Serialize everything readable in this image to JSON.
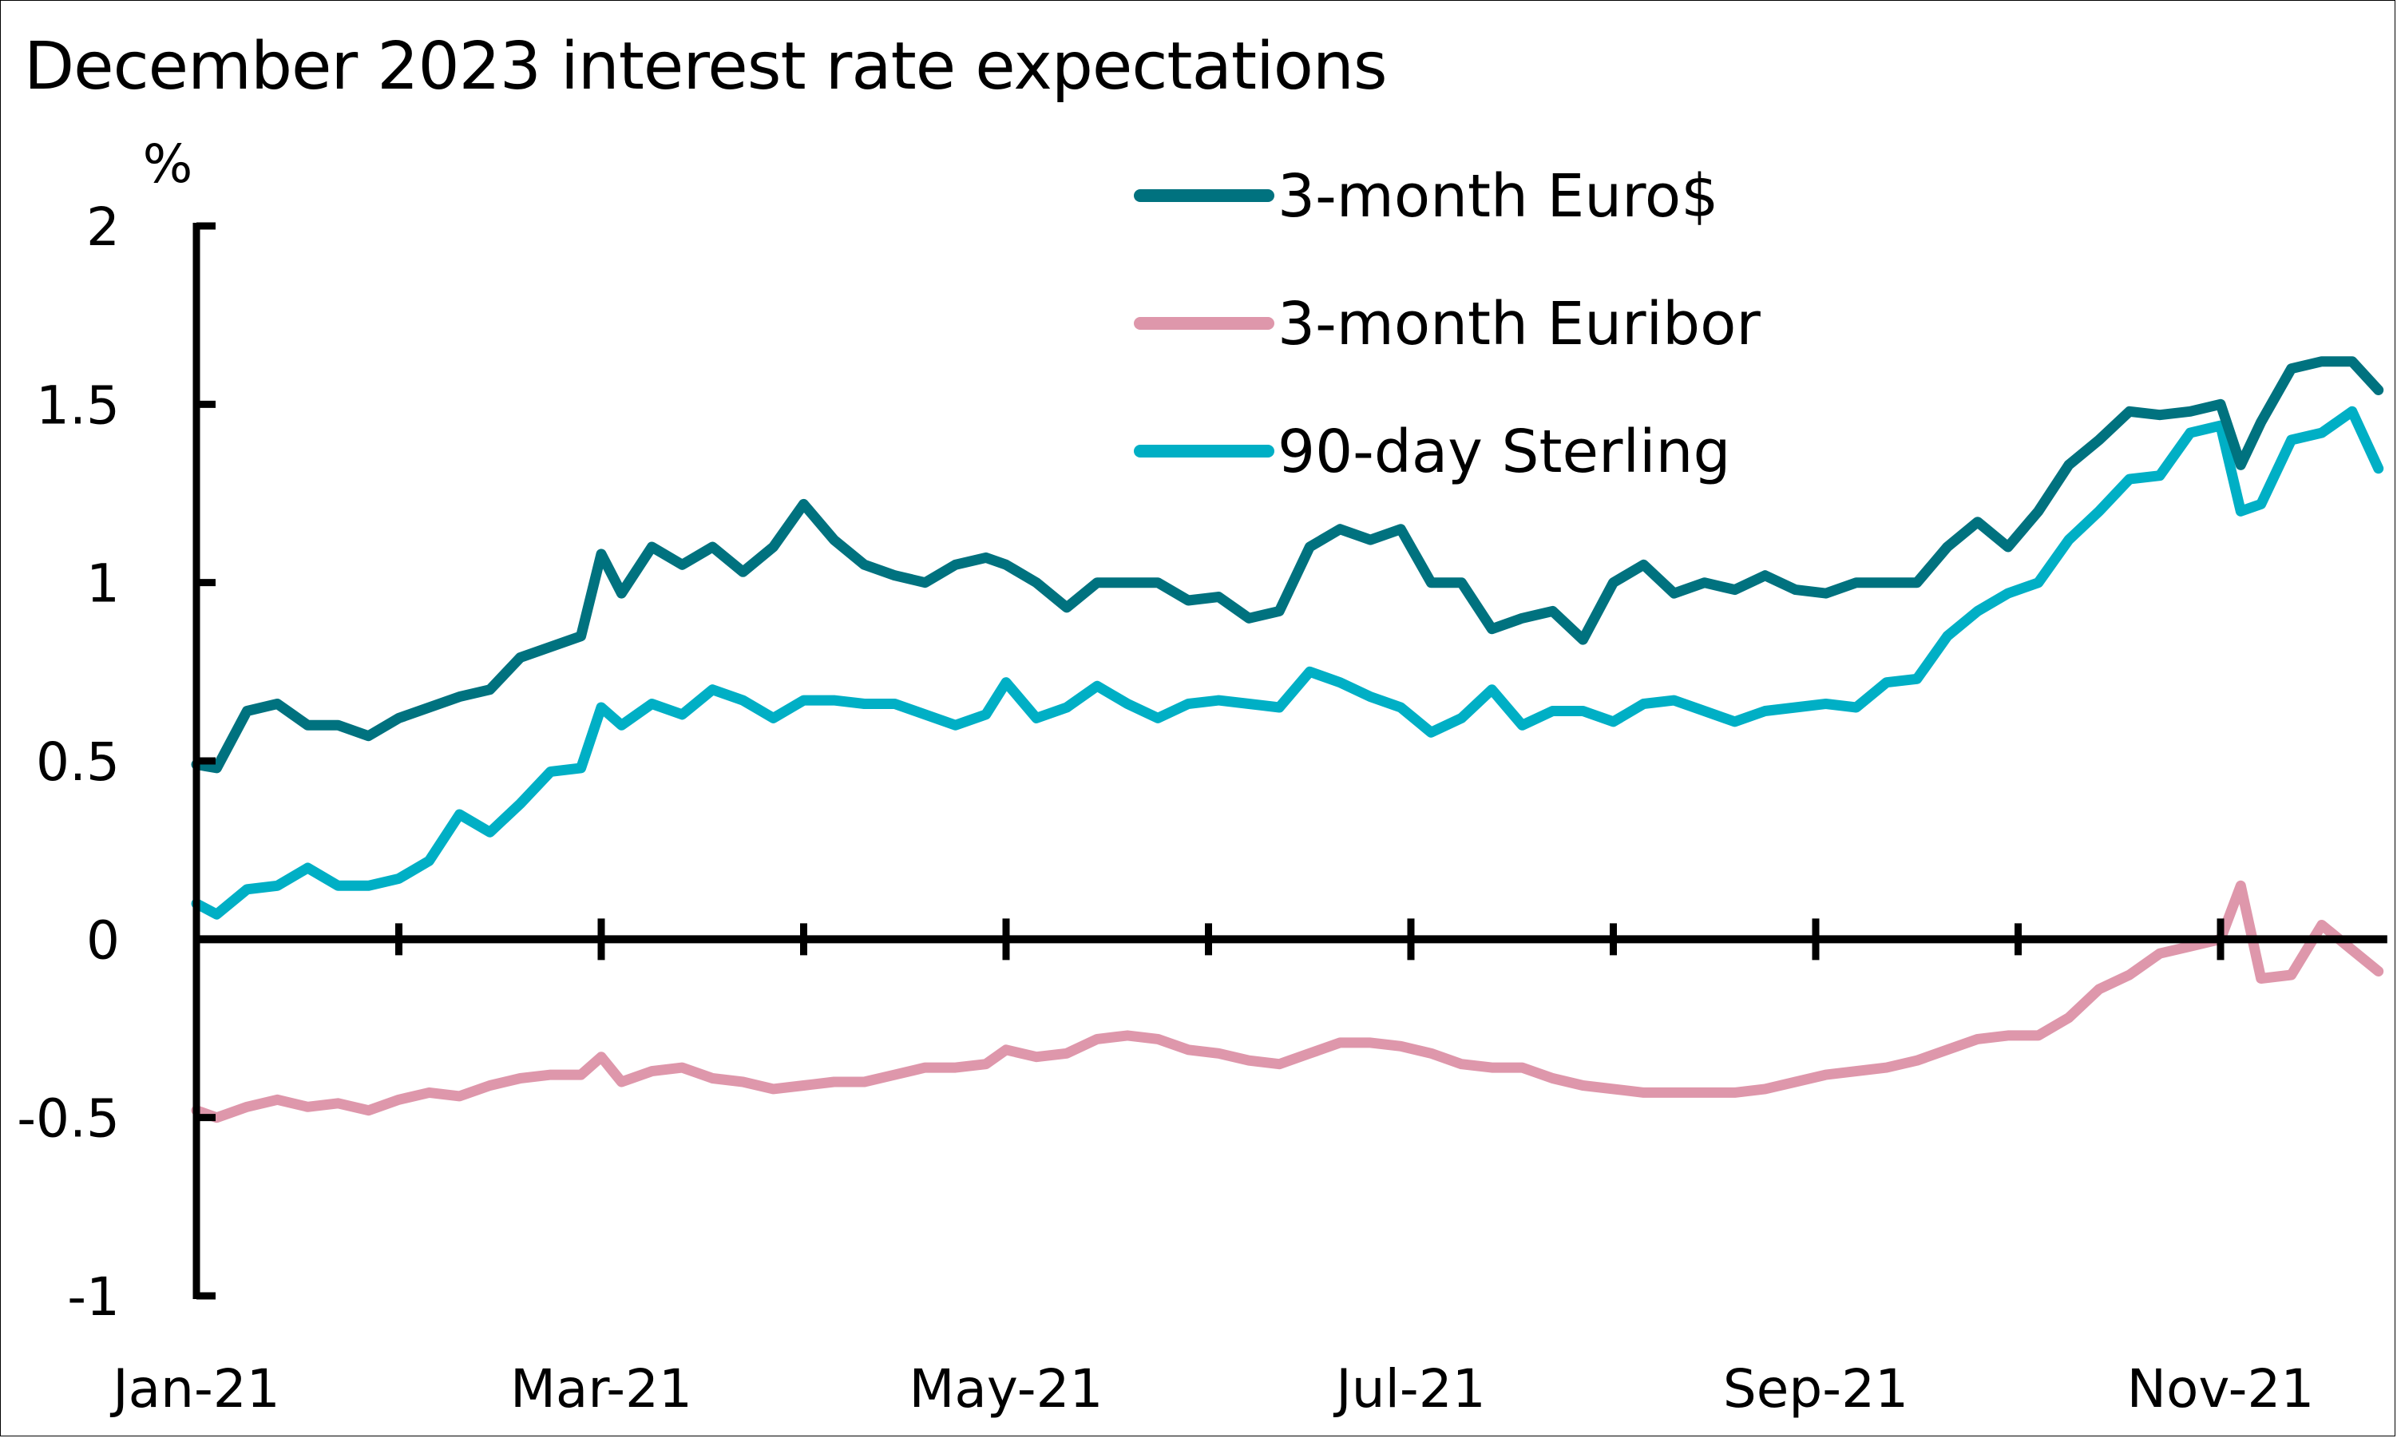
{
  "chart_data": {
    "type": "line",
    "title": "December 2023 interest rate expectations",
    "ylabel": "%",
    "xlabel": "",
    "ylim": [
      -1,
      2
    ],
    "yticks": [
      -1,
      -0.5,
      0,
      0.5,
      1,
      1.5,
      2
    ],
    "ytick_labels": [
      "-1",
      "-0.5",
      "0",
      "0.5",
      "1",
      "1.5",
      "2"
    ],
    "x_range_months": [
      0,
      10.8
    ],
    "xtick_labels": [
      {
        "label": "Jan-21",
        "month": 0
      },
      {
        "label": "Mar-21",
        "month": 2
      },
      {
        "label": "May-21",
        "month": 4
      },
      {
        "label": "Jul-21",
        "month": 6
      },
      {
        "label": "Sep-21",
        "month": 8
      },
      {
        "label": "Nov-21",
        "month": 10
      }
    ],
    "minor_ticks_months": [
      1,
      2,
      3,
      4,
      5,
      6,
      7,
      8,
      9,
      10
    ],
    "grid": false,
    "legend_position": "top-right",
    "x": [
      0.0,
      0.1,
      0.25,
      0.4,
      0.55,
      0.7,
      0.85,
      1.0,
      1.15,
      1.3,
      1.45,
      1.6,
      1.75,
      1.9,
      2.0,
      2.1,
      2.25,
      2.4,
      2.55,
      2.7,
      2.85,
      3.0,
      3.15,
      3.3,
      3.45,
      3.6,
      3.75,
      3.9,
      4.0,
      4.15,
      4.3,
      4.45,
      4.6,
      4.75,
      4.9,
      5.05,
      5.2,
      5.35,
      5.5,
      5.65,
      5.8,
      5.95,
      6.1,
      6.25,
      6.4,
      6.55,
      6.7,
      6.85,
      7.0,
      7.15,
      7.3,
      7.45,
      7.6,
      7.75,
      7.9,
      8.05,
      8.2,
      8.35,
      8.5,
      8.65,
      8.8,
      8.95,
      9.1,
      9.25,
      9.4,
      9.55,
      9.7,
      9.85,
      10.0,
      10.1,
      10.2,
      10.35,
      10.5,
      10.65,
      10.78
    ],
    "series": [
      {
        "name": "3-month Euro$",
        "color": "#00727F",
        "values": [
          0.49,
          0.48,
          0.64,
          0.66,
          0.6,
          0.6,
          0.57,
          0.62,
          0.65,
          0.68,
          0.7,
          0.79,
          0.82,
          0.85,
          1.08,
          0.97,
          1.1,
          1.05,
          1.1,
          1.03,
          1.1,
          1.22,
          1.12,
          1.05,
          1.02,
          1.0,
          1.05,
          1.07,
          1.05,
          1.0,
          0.93,
          1.0,
          1.0,
          1.0,
          0.95,
          0.96,
          0.9,
          0.92,
          1.1,
          1.15,
          1.12,
          1.15,
          1.0,
          1.0,
          0.87,
          0.9,
          0.92,
          0.84,
          1.0,
          1.05,
          0.97,
          1.0,
          0.98,
          1.02,
          0.98,
          0.97,
          1.0,
          1.0,
          1.0,
          1.1,
          1.17,
          1.1,
          1.2,
          1.33,
          1.4,
          1.48,
          1.47,
          1.48,
          1.5,
          1.33,
          1.45,
          1.6,
          1.62,
          1.62,
          1.54
        ]
      },
      {
        "name": "3-month Euribor",
        "color": "#DE97AB",
        "values": [
          -0.48,
          -0.5,
          -0.47,
          -0.45,
          -0.47,
          -0.46,
          -0.48,
          -0.45,
          -0.43,
          -0.44,
          -0.41,
          -0.39,
          -0.38,
          -0.38,
          -0.33,
          -0.4,
          -0.37,
          -0.36,
          -0.39,
          -0.4,
          -0.42,
          -0.41,
          -0.4,
          -0.4,
          -0.38,
          -0.36,
          -0.36,
          -0.35,
          -0.31,
          -0.33,
          -0.32,
          -0.28,
          -0.27,
          -0.28,
          -0.31,
          -0.32,
          -0.34,
          -0.35,
          -0.32,
          -0.29,
          -0.29,
          -0.3,
          -0.32,
          -0.35,
          -0.36,
          -0.36,
          -0.39,
          -0.41,
          -0.42,
          -0.43,
          -0.43,
          -0.43,
          -0.43,
          -0.42,
          -0.4,
          -0.38,
          -0.37,
          -0.36,
          -0.34,
          -0.31,
          -0.28,
          -0.27,
          -0.27,
          -0.22,
          -0.14,
          -0.1,
          -0.04,
          -0.02,
          0.0,
          0.15,
          -0.11,
          -0.1,
          0.04,
          -0.03,
          -0.09
        ]
      },
      {
        "name": "90-day Sterling",
        "color": "#00AFC5",
        "values": [
          0.1,
          0.07,
          0.14,
          0.15,
          0.2,
          0.15,
          0.15,
          0.17,
          0.22,
          0.35,
          0.3,
          0.38,
          0.47,
          0.48,
          0.65,
          0.6,
          0.66,
          0.63,
          0.7,
          0.67,
          0.62,
          0.67,
          0.67,
          0.66,
          0.66,
          0.63,
          0.6,
          0.63,
          0.72,
          0.62,
          0.65,
          0.71,
          0.66,
          0.62,
          0.66,
          0.67,
          0.66,
          0.65,
          0.75,
          0.72,
          0.68,
          0.65,
          0.58,
          0.62,
          0.7,
          0.6,
          0.64,
          0.64,
          0.61,
          0.66,
          0.67,
          0.64,
          0.61,
          0.64,
          0.65,
          0.66,
          0.65,
          0.72,
          0.73,
          0.85,
          0.92,
          0.97,
          1.0,
          1.12,
          1.2,
          1.29,
          1.3,
          1.42,
          1.44,
          1.2,
          1.22,
          1.4,
          1.42,
          1.48,
          1.32
        ]
      }
    ]
  }
}
